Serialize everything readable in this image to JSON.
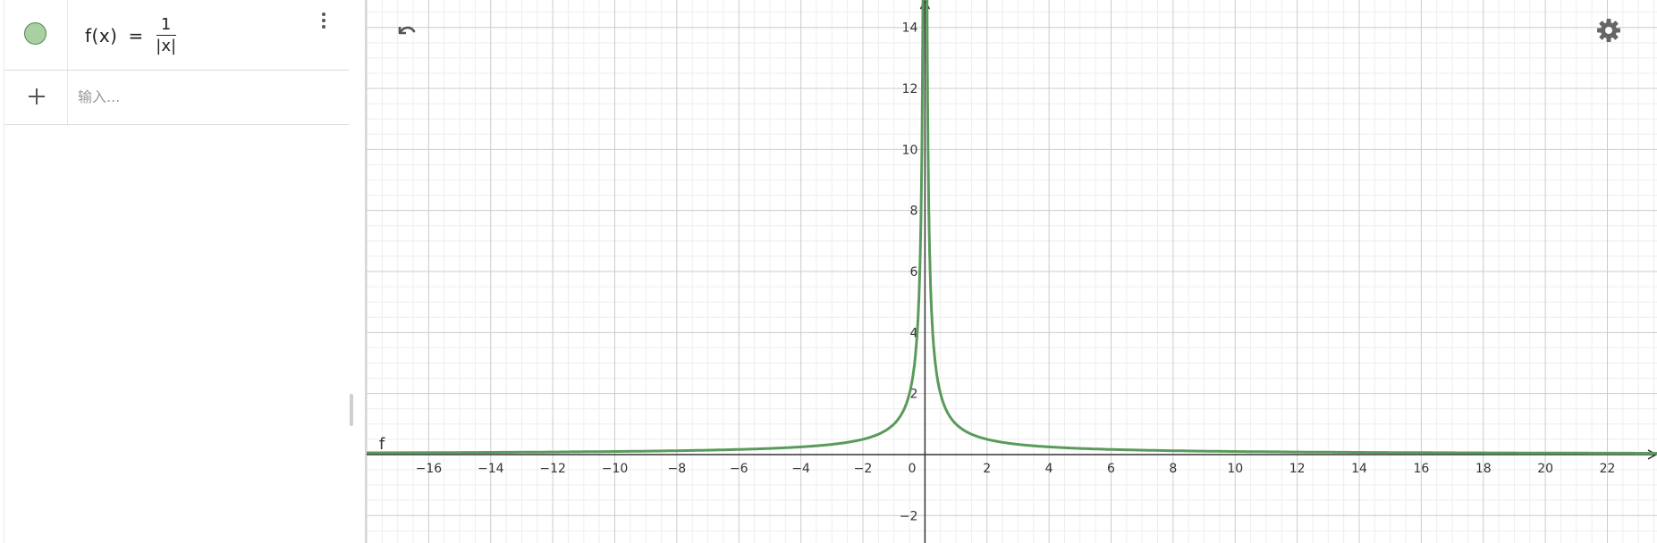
{
  "algebra": {
    "items": [
      {
        "color": "#a9cfa3",
        "formula_lhs": "f(x)",
        "equals": "=",
        "frac_numerator": "1",
        "frac_denominator": "|x|",
        "menu_icon": "vertical-dots-icon",
        "visibility_icon": "color-dot-icon"
      }
    ],
    "input": {
      "placeholder": "输入...",
      "value": "",
      "add_icon": "plus-icon"
    }
  },
  "toolbar": {
    "undo_icon": "undo-icon",
    "settings_icon": "gear-icon"
  },
  "graph": {
    "curve_color": "#5a9a5a",
    "grid_major": "#cccccc",
    "grid_minor": "#eeeeee",
    "axis_color": "#333333",
    "function_label": "f",
    "origin_label": "0"
  },
  "chart_data": {
    "type": "line",
    "function": "1/|x|",
    "series": [
      {
        "name": "f",
        "x": [
          -18,
          -16,
          -12,
          -8,
          -4,
          -2,
          -1,
          -0.5,
          -0.2,
          -0.1,
          -0.07,
          0.07,
          0.1,
          0.2,
          0.5,
          1,
          2,
          4,
          8,
          12,
          16,
          22,
          23.6
        ],
        "y": [
          0.056,
          0.0625,
          0.083,
          0.125,
          0.25,
          0.5,
          1,
          2,
          5,
          10,
          14.3,
          14.3,
          10,
          5,
          2,
          1,
          0.5,
          0.25,
          0.125,
          0.083,
          0.0625,
          0.045,
          0.042
        ]
      }
    ],
    "xlim": [
      -18,
      23.6
    ],
    "ylim": [
      -2.9,
      14.9
    ],
    "x_ticks": [
      -16,
      -14,
      -12,
      -10,
      -8,
      -6,
      -4,
      -2,
      2,
      4,
      6,
      8,
      10,
      12,
      14,
      16,
      18,
      20,
      22
    ],
    "x_tick_labels": [
      "−16",
      "−14",
      "−12",
      "−10",
      "−8",
      "−6",
      "−4",
      "−2",
      "2",
      "4",
      "6",
      "8",
      "10",
      "12",
      "14",
      "16",
      "18",
      "20",
      "22"
    ],
    "y_ticks": [
      -2,
      2,
      4,
      6,
      8,
      10,
      12,
      14
    ],
    "y_tick_labels": [
      "−2",
      "2",
      "4",
      "6",
      "8",
      "10",
      "12",
      "14"
    ],
    "grid": true,
    "minor_grid": true
  }
}
